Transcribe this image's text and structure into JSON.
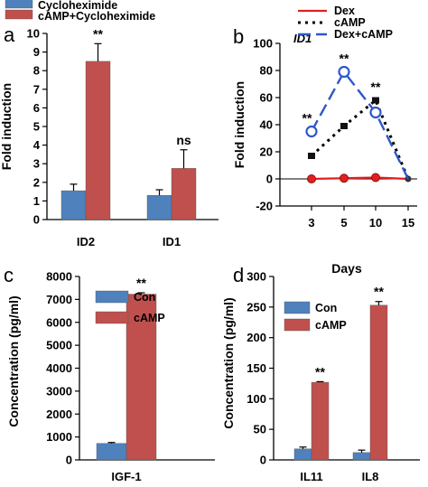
{
  "colors": {
    "blue": "#4f81bd",
    "red": "#c0504d",
    "line_red": "#e02020",
    "line_black": "#000000",
    "line_blue": "#2e58c8"
  },
  "chart_data": [
    {
      "id": "a",
      "panel_label": "a",
      "type": "bar",
      "categories": [
        "ID2",
        "ID1"
      ],
      "series": [
        {
          "name": "Cycloheximide",
          "values": [
            1.55,
            1.3
          ],
          "errors": [
            0.35,
            0.3
          ]
        },
        {
          "name": "cAMP+Cycloheximide",
          "values": [
            8.5,
            2.75
          ],
          "errors": [
            0.95,
            1.0
          ]
        }
      ],
      "significance": [
        "**",
        "ns"
      ],
      "ylabel": "Fold induction",
      "ylim": [
        0,
        10
      ],
      "yticks": [
        "0",
        "1",
        "2",
        "3",
        "4",
        "5",
        "6",
        "7",
        "8",
        "9",
        "10"
      ],
      "legend_position": "top"
    },
    {
      "id": "b",
      "panel_label": "b",
      "type": "line",
      "title": "ID1",
      "x": [
        "3",
        "5",
        "10",
        "15"
      ],
      "series": [
        {
          "name": "Dex",
          "values": [
            0,
            0.5,
            1,
            0
          ]
        },
        {
          "name": "cAMP",
          "values": [
            17,
            39,
            58,
            0
          ]
        },
        {
          "name": "Dex+cAMP",
          "values": [
            35,
            79,
            49,
            0
          ]
        }
      ],
      "significance": [
        {
          "x": "3",
          "text": "**"
        },
        {
          "x": "5",
          "text": "**"
        },
        {
          "x": "10",
          "text": "**"
        }
      ],
      "xlabel": "Days",
      "ylabel": "Fold induction",
      "ylim": [
        -20,
        100
      ],
      "yticks": [
        "-20",
        "0",
        "20",
        "40",
        "60",
        "80",
        "100"
      ],
      "legend_position": "top-right"
    },
    {
      "id": "c",
      "panel_label": "c",
      "type": "bar",
      "categories": [
        "IGF-1"
      ],
      "series": [
        {
          "name": "Con",
          "values": [
            720
          ],
          "errors": [
            40
          ]
        },
        {
          "name": "cAMP",
          "values": [
            7230
          ],
          "errors": [
            60
          ]
        }
      ],
      "significance": [
        "**"
      ],
      "ylabel": "Concentration (pg/ml)",
      "ylim": [
        0,
        8000
      ],
      "yticks": [
        "0",
        "1000",
        "2000",
        "3000",
        "4000",
        "5000",
        "6000",
        "7000",
        "8000"
      ],
      "legend_position": "top-left"
    },
    {
      "id": "d",
      "panel_label": "d",
      "type": "bar",
      "categories": [
        "IL11",
        "IL8"
      ],
      "series": [
        {
          "name": "Con",
          "values": [
            18,
            12
          ],
          "errors": [
            3,
            4
          ]
        },
        {
          "name": "cAMP",
          "values": [
            127,
            253
          ],
          "errors": [
            1,
            6
          ]
        }
      ],
      "significance": [
        "**",
        "**"
      ],
      "ylabel": "Concentration (pg/ml)",
      "ylim": [
        0,
        300
      ],
      "yticks": [
        "0",
        "50",
        "100",
        "150",
        "200",
        "250",
        "300"
      ],
      "legend_position": "top-left"
    }
  ]
}
